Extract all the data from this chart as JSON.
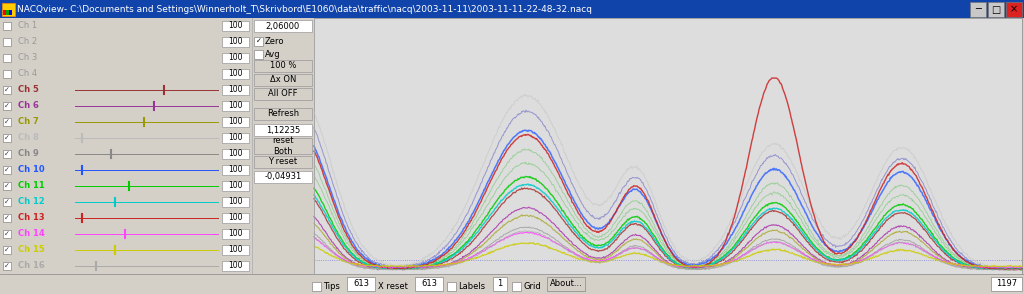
{
  "title": "NACQview- C:\\Documents and Settings\\Winnerholt_T\\Skrivbord\\E1060\\data\\traffic\\nacq\\2003-11-11\\2003-11-11-22-48-32.nacq",
  "bg_color": "#d4d0c8",
  "titlebar_color": "#1144aa",
  "titlebar_text_color": "#ffffff",
  "channels": [
    {
      "name": "Ch 1",
      "color": "#aaaaaa",
      "active": false
    },
    {
      "name": "Ch 2",
      "color": "#7777bb",
      "active": false
    },
    {
      "name": "Ch 3",
      "color": "#44aa44",
      "active": false
    },
    {
      "name": "Ch 4",
      "color": "#44aa44",
      "active": false
    },
    {
      "name": "Ch 5",
      "color": "#993333",
      "active": true
    },
    {
      "name": "Ch 6",
      "color": "#993399",
      "active": true
    },
    {
      "name": "Ch 7",
      "color": "#999900",
      "active": true
    },
    {
      "name": "Ch 8",
      "color": "#bbbbbb",
      "active": true
    },
    {
      "name": "Ch 9",
      "color": "#888888",
      "active": true
    },
    {
      "name": "Ch 10",
      "color": "#2255ff",
      "active": true
    },
    {
      "name": "Ch 11",
      "color": "#00cc00",
      "active": true
    },
    {
      "name": "Ch 12",
      "color": "#00cccc",
      "active": true
    },
    {
      "name": "Ch 13",
      "color": "#cc2222",
      "active": true
    },
    {
      "name": "Ch 14",
      "color": "#ff44ff",
      "active": true
    },
    {
      "name": "Ch 15",
      "color": "#cccc00",
      "active": true
    },
    {
      "name": "Ch 16",
      "color": "#aaaaaa",
      "active": true
    }
  ],
  "plot_colors": {
    "Ch 1": "#cccccc",
    "Ch 2": "#8888cc",
    "Ch 3": "#88cc88",
    "Ch 4": "#88cc88",
    "Ch 5": "#aa3333",
    "Ch 6": "#aa33aa",
    "Ch 7": "#aaaa33",
    "Ch 8": "#dddddd",
    "Ch 9": "#999999",
    "Ch 10": "#3366ff",
    "Ch 11": "#00cc00",
    "Ch 12": "#00cccc",
    "Ch 13": "#cc2222",
    "Ch 14": "#ff44ff",
    "Ch 15": "#cccc00",
    "Ch 16": "#aaaaaa"
  },
  "value_display": "2,06000",
  "value_display2": "1,12235",
  "value_display3": "-0,04931"
}
